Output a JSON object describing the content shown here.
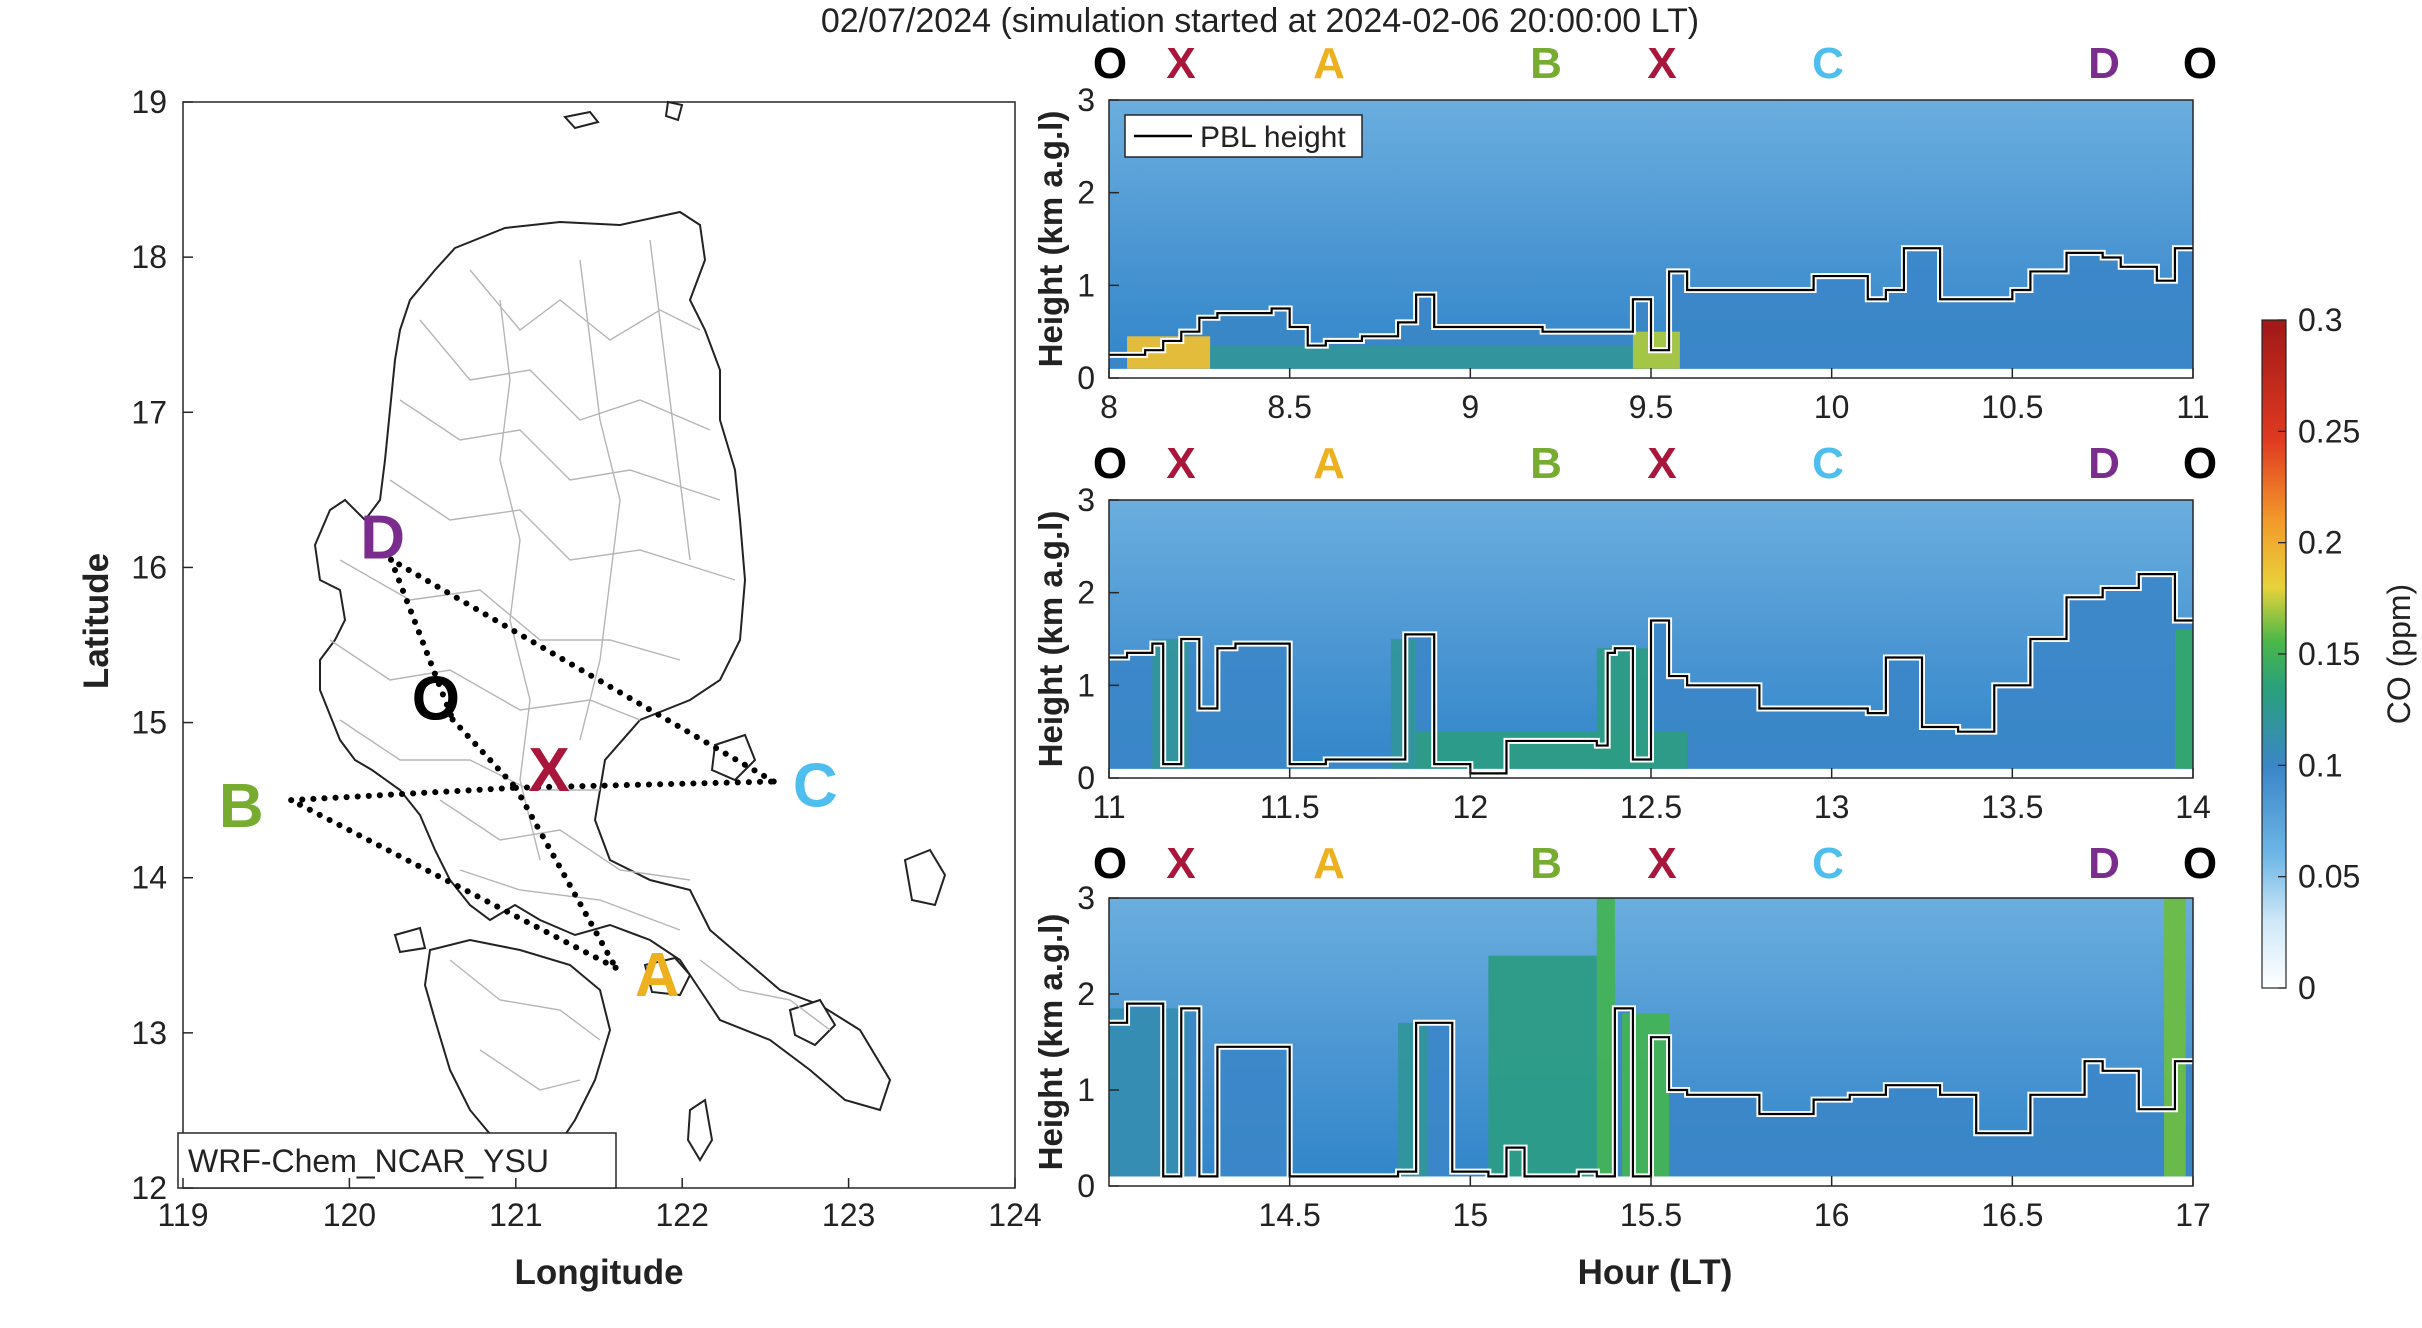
{
  "figure": {
    "title": "02/07/2024 (simulation started at 2024-02-06 20:00:00 LT)"
  },
  "chart_data": [
    {
      "type": "map",
      "xlabel": "Longitude",
      "ylabel": "Latitude",
      "xlim": [
        119,
        124
      ],
      "ylim": [
        12,
        19
      ],
      "xticks": [
        "119",
        "120",
        "121",
        "122",
        "123",
        "124"
      ],
      "yticks": [
        "12",
        "13",
        "14",
        "15",
        "16",
        "17",
        "18",
        "19"
      ],
      "model_label": "WRF-Chem_NCAR_YSU",
      "sites": [
        {
          "name": "D",
          "lon": 120.25,
          "lat": 16.05,
          "label_lon": 120.2,
          "label_lat": 16.2,
          "color": "#7B2D8E"
        },
        {
          "name": "O",
          "lon": 120.62,
          "lat": 15.02,
          "label_lon": 120.52,
          "label_lat": 15.16,
          "color": "#000000"
        },
        {
          "name": "X",
          "lon": 121.0,
          "lat": 14.58,
          "label_lon": 121.2,
          "label_lat": 14.7,
          "color": "#A8173B"
        },
        {
          "name": "C",
          "lon": 122.55,
          "lat": 14.62,
          "label_lon": 122.8,
          "label_lat": 14.6,
          "color": "#4DBEEE"
        },
        {
          "name": "B",
          "lon": 119.65,
          "lat": 14.5,
          "label_lon": 119.35,
          "label_lat": 14.47,
          "color": "#77AC30"
        },
        {
          "name": "A",
          "lon": 121.6,
          "lat": 13.42,
          "label_lon": 121.85,
          "label_lat": 13.38,
          "color": "#EDB120"
        }
      ],
      "route": [
        [
          "O",
          "X"
        ],
        [
          "X",
          "A"
        ],
        [
          "A",
          "B"
        ],
        [
          "B",
          "X"
        ],
        [
          "X",
          "C"
        ],
        [
          "C",
          "D"
        ],
        [
          "D",
          "O"
        ]
      ]
    },
    {
      "type": "heatmap",
      "xlim": [
        8,
        11
      ],
      "ylim": [
        0,
        3
      ],
      "xticks": [
        "8",
        "8.5",
        "9",
        "9.5",
        "10",
        "10.5",
        "11"
      ],
      "yticks": [
        "0",
        "1",
        "2",
        "3"
      ],
      "ylabel": "Height (km a.g.l)",
      "legend": "PBL height",
      "site_sequence": [
        "O",
        "X",
        "A",
        "B",
        "X",
        "C",
        "D",
        "O"
      ],
      "pbl": {
        "x": [
          8.0,
          8.1,
          8.15,
          8.2,
          8.25,
          8.3,
          8.45,
          8.5,
          8.55,
          8.6,
          8.7,
          8.8,
          8.85,
          8.9,
          9.0,
          9.2,
          9.4,
          9.45,
          9.5,
          9.55,
          9.6,
          9.8,
          9.95,
          10.1,
          10.15,
          10.2,
          10.3,
          10.5,
          10.55,
          10.65,
          10.75,
          10.8,
          10.9,
          10.95
        ],
        "y": [
          0.25,
          0.3,
          0.4,
          0.5,
          0.65,
          0.7,
          0.75,
          0.55,
          0.35,
          0.4,
          0.45,
          0.6,
          0.9,
          0.55,
          0.55,
          0.5,
          0.5,
          0.85,
          0.3,
          1.15,
          0.95,
          0.95,
          1.1,
          0.85,
          0.95,
          1.4,
          0.85,
          0.95,
          1.15,
          1.35,
          1.3,
          1.2,
          1.05,
          1.4
        ]
      },
      "plumes": [
        {
          "x0": 8.05,
          "x1": 8.28,
          "top": 0.45,
          "value": 0.19
        },
        {
          "x0": 8.28,
          "x1": 9.48,
          "top": 0.35,
          "value": 0.12
        },
        {
          "x0": 9.45,
          "x1": 9.58,
          "top": 0.5,
          "value": 0.17
        }
      ]
    },
    {
      "type": "heatmap",
      "xlim": [
        11,
        14
      ],
      "ylim": [
        0,
        3
      ],
      "xticks": [
        "11",
        "11.5",
        "12",
        "12.5",
        "13",
        "13.5",
        "14"
      ],
      "yticks": [
        "0",
        "1",
        "2",
        "3"
      ],
      "ylabel": "Height (km a.g.l)",
      "site_sequence": [
        "O",
        "X",
        "A",
        "B",
        "X",
        "C",
        "D",
        "O"
      ],
      "pbl": {
        "x": [
          11.0,
          11.05,
          11.12,
          11.15,
          11.2,
          11.25,
          11.3,
          11.35,
          11.5,
          11.6,
          11.78,
          11.82,
          11.9,
          12.0,
          12.1,
          12.35,
          12.38,
          12.4,
          12.45,
          12.5,
          12.55,
          12.6,
          12.8,
          12.95,
          13.1,
          13.15,
          13.25,
          13.35,
          13.45,
          13.55,
          13.65,
          13.75,
          13.85,
          13.95
        ],
        "y": [
          1.3,
          1.35,
          1.45,
          0.15,
          1.5,
          0.75,
          1.4,
          1.45,
          0.15,
          0.2,
          0.2,
          1.55,
          0.15,
          0.05,
          0.4,
          0.35,
          1.35,
          1.4,
          0.2,
          1.7,
          1.1,
          1.0,
          0.75,
          0.75,
          0.7,
          1.3,
          0.55,
          0.5,
          1.0,
          1.5,
          1.95,
          2.05,
          2.2,
          1.7
        ]
      },
      "plumes": [
        {
          "x0": 11.12,
          "x1": 11.22,
          "top": 1.5,
          "value": 0.12
        },
        {
          "x0": 11.78,
          "x1": 11.85,
          "top": 1.5,
          "value": 0.12
        },
        {
          "x0": 11.85,
          "x1": 12.6,
          "top": 0.5,
          "value": 0.13
        },
        {
          "x0": 12.35,
          "x1": 12.5,
          "top": 1.4,
          "value": 0.13
        },
        {
          "x0": 13.95,
          "x1": 14.0,
          "top": 1.6,
          "value": 0.14
        }
      ]
    },
    {
      "type": "heatmap",
      "xlim": [
        14,
        17
      ],
      "ylim": [
        0,
        3
      ],
      "xticks": [
        "14.5",
        "15",
        "15.5",
        "16",
        "16.5",
        "17"
      ],
      "yticks": [
        "0",
        "1",
        "2",
        "3"
      ],
      "xlabel": "Hour (LT)",
      "ylabel": "Height (km a.g.l)",
      "site_sequence": [
        "O",
        "X",
        "A",
        "B",
        "X",
        "C",
        "D",
        "O"
      ],
      "pbl": {
        "x": [
          14.0,
          14.05,
          14.12,
          14.15,
          14.2,
          14.25,
          14.3,
          14.48,
          14.5,
          14.6,
          14.8,
          14.85,
          14.95,
          15.05,
          15.1,
          15.15,
          15.3,
          15.35,
          15.4,
          15.45,
          15.5,
          15.55,
          15.6,
          15.8,
          15.95,
          16.05,
          16.15,
          16.3,
          16.4,
          16.55,
          16.7,
          16.75,
          16.85,
          16.95
        ],
        "y": [
          1.7,
          1.9,
          1.9,
          0.1,
          1.85,
          0.1,
          1.45,
          1.45,
          0.1,
          0.1,
          0.15,
          1.7,
          0.15,
          0.1,
          0.4,
          0.1,
          0.15,
          0.1,
          1.85,
          0.1,
          1.55,
          1.0,
          0.95,
          0.75,
          0.9,
          0.95,
          1.05,
          0.95,
          0.55,
          0.95,
          1.3,
          1.2,
          0.8,
          1.3
        ]
      },
      "plumes": [
        {
          "x0": 14.0,
          "x1": 14.22,
          "top": 1.85,
          "value": 0.11
        },
        {
          "x0": 14.8,
          "x1": 14.88,
          "top": 1.7,
          "value": 0.12
        },
        {
          "x0": 15.05,
          "x1": 15.35,
          "top": 2.4,
          "value": 0.13
        },
        {
          "x0": 15.35,
          "x1": 15.4,
          "top": 3.0,
          "value": 0.15
        },
        {
          "x0": 15.42,
          "x1": 15.55,
          "top": 1.8,
          "value": 0.15
        },
        {
          "x0": 16.92,
          "x1": 16.98,
          "top": 3.0,
          "value": 0.16
        }
      ]
    },
    {
      "type": "colorbar",
      "label": "CO (ppm)",
      "range": [
        0,
        0.3
      ],
      "ticks": [
        "0",
        "0.05",
        "0.1",
        "0.15",
        "0.2",
        "0.25",
        "0.3"
      ]
    }
  ]
}
